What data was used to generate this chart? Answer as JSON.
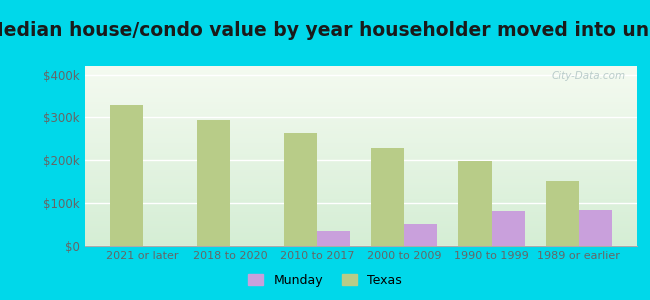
{
  "title": "Median house/condo value by year householder moved into unit",
  "categories": [
    "2021 or later",
    "2018 to 2020",
    "2010 to 2017",
    "2000 to 2009",
    "1990 to 1999",
    "1989 or earlier"
  ],
  "munday_values": [
    0,
    0,
    35000,
    52000,
    82000,
    85000
  ],
  "texas_values": [
    330000,
    295000,
    263000,
    228000,
    198000,
    152000
  ],
  "munday_color": "#c9a0dc",
  "texas_color": "#b8cc88",
  "background_outer": "#00d8ea",
  "background_inner_top": "#f4faf0",
  "background_inner_bottom": "#d4edd4",
  "yticks": [
    0,
    100000,
    200000,
    300000,
    400000
  ],
  "ytick_labels": [
    "$0",
    "$100k",
    "$200k",
    "$300k",
    "$400k"
  ],
  "ylim": [
    0,
    420000
  ],
  "bar_width": 0.38,
  "title_fontsize": 13.5,
  "watermark": "City-Data.com",
  "legend_labels": [
    "Munday",
    "Texas"
  ]
}
